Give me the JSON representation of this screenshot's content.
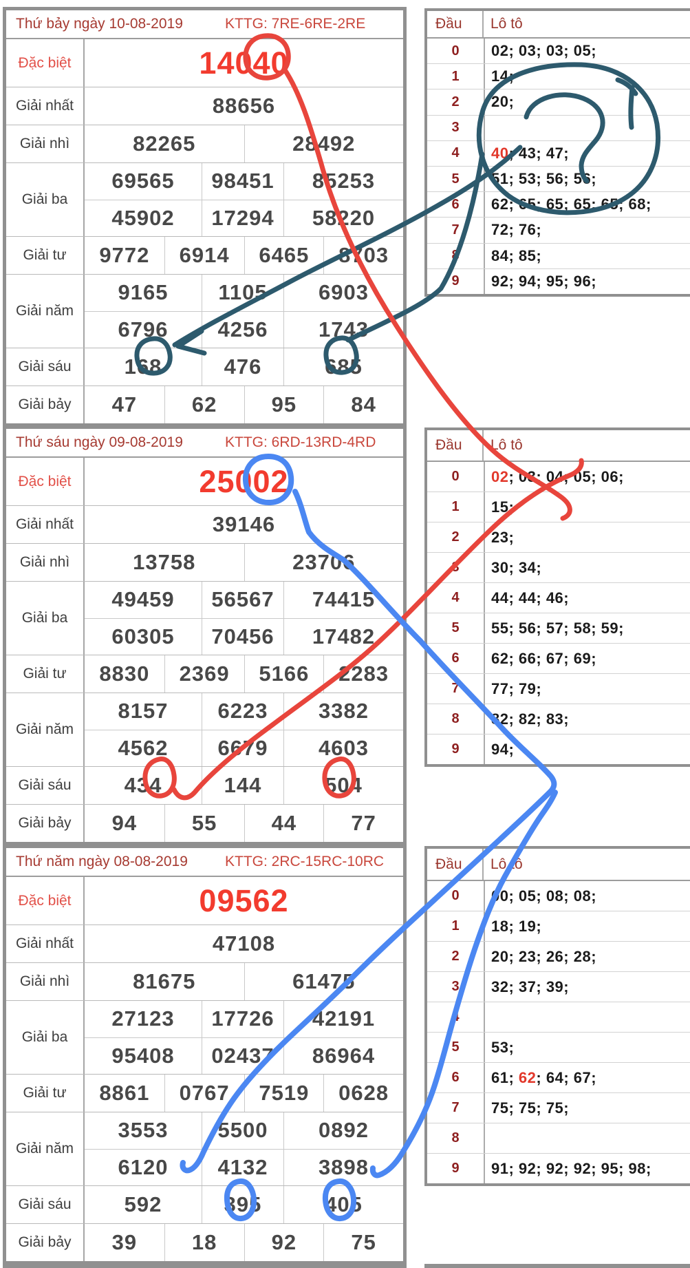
{
  "colors": {
    "date_text": "#a63a31",
    "kttg_text": "#c9473c",
    "special_label": "#e25048",
    "special_number": "#f23b2e",
    "prize_label": "#3e3e3e",
    "prize_number": "#484848",
    "dau_header": "#9a372e",
    "dau_digit": "#8e1f1f",
    "loto_text": "#1b1b1b",
    "loto_highlight": "#e2382b",
    "table_border": "#909090"
  },
  "annotations": {
    "red": "#e8453c",
    "blue": "#4b87f2",
    "teal": "#2d5a6d"
  },
  "sections": [
    {
      "date": "Thứ bảy ngày 10-08-2019",
      "kttg": "KTTG: 7RE-6RE-2RE",
      "prize_rows": [
        {
          "label": "Đặc biệt",
          "special": true,
          "rows": [
            [
              "14040"
            ]
          ]
        },
        {
          "label": "Giải nhất",
          "rows": [
            [
              "88656"
            ]
          ]
        },
        {
          "label": "Giải nhì",
          "rows": [
            [
              "82265",
              "28492"
            ]
          ]
        },
        {
          "label": "Giải ba",
          "rows": [
            [
              "69565",
              "98451",
              "85253"
            ],
            [
              "45902",
              "17294",
              "58220"
            ]
          ]
        },
        {
          "label": "Giải tư",
          "rows": [
            [
              "9772",
              "6914",
              "6465",
              "8703"
            ]
          ]
        },
        {
          "label": "Giải năm",
          "rows": [
            [
              "9165",
              "1105",
              "6903"
            ],
            [
              "6796",
              "4256",
              "1743"
            ]
          ]
        },
        {
          "label": "Giải sáu",
          "rows": [
            [
              "168",
              "476",
              "685"
            ]
          ]
        },
        {
          "label": "Giải bảy",
          "rows": [
            [
              "47",
              "62",
              "95",
              "84"
            ]
          ]
        }
      ],
      "dau_table": {
        "col1": "Đầu",
        "col2": "Lô tô",
        "rows": [
          {
            "digit": "0",
            "parts": [
              {
                "t": "02; 03; 03; 05;"
              }
            ]
          },
          {
            "digit": "1",
            "parts": [
              {
                "t": "14;"
              }
            ]
          },
          {
            "digit": "2",
            "parts": [
              {
                "t": "20;"
              }
            ]
          },
          {
            "digit": "3",
            "parts": []
          },
          {
            "digit": "4",
            "parts": [
              {
                "t": "40",
                "hl": true
              },
              {
                "t": "; 43; 47;"
              }
            ]
          },
          {
            "digit": "5",
            "parts": [
              {
                "t": "51; 53; 56; 56;"
              }
            ]
          },
          {
            "digit": "6",
            "parts": [
              {
                "t": "62; 65; 65; 65; 65; 68;"
              }
            ]
          },
          {
            "digit": "7",
            "parts": [
              {
                "t": "72; 76;"
              }
            ]
          },
          {
            "digit": "8",
            "parts": [
              {
                "t": "84; 85;"
              }
            ]
          },
          {
            "digit": "9",
            "parts": [
              {
                "t": "92; 94; 95; 96;"
              }
            ]
          }
        ]
      }
    },
    {
      "date": "Thứ sáu ngày 09-08-2019",
      "kttg": "KTTG: 6RD-13RD-4RD",
      "prize_rows": [
        {
          "label": "Đặc biệt",
          "special": true,
          "rows": [
            [
              "25002"
            ]
          ]
        },
        {
          "label": "Giải nhất",
          "rows": [
            [
              "39146"
            ]
          ]
        },
        {
          "label": "Giải nhì",
          "rows": [
            [
              "13758",
              "23706"
            ]
          ]
        },
        {
          "label": "Giải ba",
          "rows": [
            [
              "49459",
              "56567",
              "74415"
            ],
            [
              "60305",
              "70456",
              "17482"
            ]
          ]
        },
        {
          "label": "Giải tư",
          "rows": [
            [
              "8830",
              "2369",
              "5166",
              "2283"
            ]
          ]
        },
        {
          "label": "Giải năm",
          "rows": [
            [
              "8157",
              "6223",
              "3382"
            ],
            [
              "4562",
              "6679",
              "4603"
            ]
          ]
        },
        {
          "label": "Giải sáu",
          "rows": [
            [
              "434",
              "144",
              "504"
            ]
          ]
        },
        {
          "label": "Giải bảy",
          "rows": [
            [
              "94",
              "55",
              "44",
              "77"
            ]
          ]
        }
      ],
      "dau_table": {
        "col1": "Đầu",
        "col2": "Lô tô",
        "rows": [
          {
            "digit": "0",
            "parts": [
              {
                "t": "02",
                "hl": true
              },
              {
                "t": "; 03; 04; 05; 06;"
              }
            ]
          },
          {
            "digit": "1",
            "parts": [
              {
                "t": "15;"
              }
            ]
          },
          {
            "digit": "2",
            "parts": [
              {
                "t": "23;"
              }
            ]
          },
          {
            "digit": "3",
            "parts": [
              {
                "t": "30; 34;"
              }
            ]
          },
          {
            "digit": "4",
            "parts": [
              {
                "t": "44; 44; 46;"
              }
            ]
          },
          {
            "digit": "5",
            "parts": [
              {
                "t": "55; 56; 57; 58; 59;"
              }
            ]
          },
          {
            "digit": "6",
            "parts": [
              {
                "t": "62; 66; 67; 69;"
              }
            ]
          },
          {
            "digit": "7",
            "parts": [
              {
                "t": "77; 79;"
              }
            ]
          },
          {
            "digit": "8",
            "parts": [
              {
                "t": "82; 82; 83;"
              }
            ]
          },
          {
            "digit": "9",
            "parts": [
              {
                "t": "94;"
              }
            ]
          }
        ]
      }
    },
    {
      "date": "Thứ năm ngày 08-08-2019",
      "kttg": "KTTG: 2RC-15RC-10RC",
      "prize_rows": [
        {
          "label": "Đặc biệt",
          "special": true,
          "rows": [
            [
              "09562"
            ]
          ]
        },
        {
          "label": "Giải nhất",
          "rows": [
            [
              "47108"
            ]
          ]
        },
        {
          "label": "Giải nhì",
          "rows": [
            [
              "81675",
              "61475"
            ]
          ]
        },
        {
          "label": "Giải ba",
          "rows": [
            [
              "27123",
              "17726",
              "42191"
            ],
            [
              "95408",
              "02437",
              "86964"
            ]
          ]
        },
        {
          "label": "Giải tư",
          "rows": [
            [
              "8861",
              "0767",
              "7519",
              "0628"
            ]
          ]
        },
        {
          "label": "Giải năm",
          "rows": [
            [
              "3553",
              "5500",
              "0892"
            ],
            [
              "6120",
              "4132",
              "3898"
            ]
          ]
        },
        {
          "label": "Giải sáu",
          "rows": [
            [
              "592",
              "395",
              "405"
            ]
          ]
        },
        {
          "label": "Giải bảy",
          "rows": [
            [
              "39",
              "18",
              "92",
              "75"
            ]
          ]
        }
      ],
      "dau_table": {
        "col1": "Đầu",
        "col2": "Lô tô",
        "rows": [
          {
            "digit": "0",
            "parts": [
              {
                "t": "00; 05; 08; 08;"
              }
            ]
          },
          {
            "digit": "1",
            "parts": [
              {
                "t": "18; 19;"
              }
            ]
          },
          {
            "digit": "2",
            "parts": [
              {
                "t": "20; 23; 26; 28;"
              }
            ]
          },
          {
            "digit": "3",
            "parts": [
              {
                "t": "32; 37; 39;"
              }
            ]
          },
          {
            "digit": "4",
            "parts": []
          },
          {
            "digit": "5",
            "parts": [
              {
                "t": "53;"
              }
            ]
          },
          {
            "digit": "6",
            "parts": [
              {
                "t": "61; "
              },
              {
                "t": "62",
                "hl": true
              },
              {
                "t": "; 64; 67;"
              }
            ]
          },
          {
            "digit": "7",
            "parts": [
              {
                "t": "75; 75; 75;"
              }
            ]
          },
          {
            "digit": "8",
            "parts": []
          },
          {
            "digit": "9",
            "parts": [
              {
                "t": "91; 92; 92; 92; 95; 98;"
              }
            ]
          }
        ]
      }
    }
  ]
}
